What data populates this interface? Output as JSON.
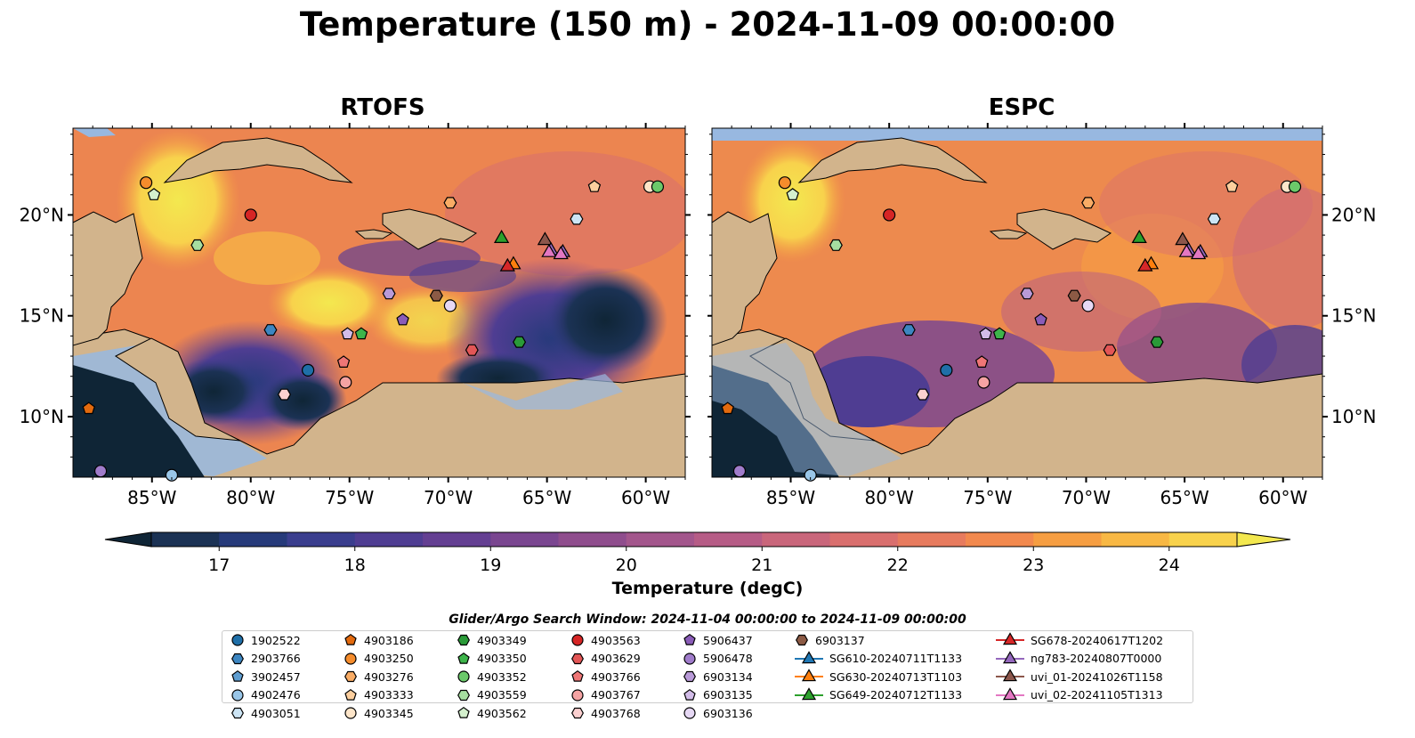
{
  "title": "Temperature (150 m) - 2024-11-09 00:00:00",
  "panels": [
    {
      "id": "rtofs",
      "title": "RTOFS"
    },
    {
      "id": "espc",
      "title": "ESPC"
    }
  ],
  "axes": {
    "x_ticks": [
      "85°W",
      "80°W",
      "75°W",
      "70°W",
      "65°W",
      "60°W"
    ],
    "y_ticks": [
      "20°N",
      "15°N",
      "10°N"
    ],
    "lon_range": [
      -89,
      -58
    ],
    "lat_range": [
      7,
      24.3
    ]
  },
  "colorbar": {
    "label": "Temperature (degC)",
    "min": 16.5,
    "max": 24.5,
    "ticks": [
      "17",
      "18",
      "19",
      "20",
      "21",
      "22",
      "23",
      "24"
    ],
    "colors": [
      "#0f2536",
      "#1b3254",
      "#263a7a",
      "#3a3e8e",
      "#4f3d92",
      "#643f92",
      "#7a4690",
      "#8f4d8d",
      "#a3568c",
      "#b65c86",
      "#c9667b",
      "#d96f6e",
      "#e77b5e",
      "#f2894e",
      "#f69e42",
      "#f8b844",
      "#f8d24c",
      "#f3e84f"
    ]
  },
  "search_window": "Glider/Argo Search Window: 2024-11-04 00:00:00 to 2024-11-09 00:00:00",
  "legend": [
    {
      "label": "1902522",
      "shape": "circle",
      "color": "#1f6fa8"
    },
    {
      "label": "2903766",
      "shape": "hexagon",
      "color": "#3d86c1"
    },
    {
      "label": "3902457",
      "shape": "pentagon",
      "color": "#5f9ed1"
    },
    {
      "label": "4902476",
      "shape": "circle",
      "color": "#99c6e8"
    },
    {
      "label": "4903051",
      "shape": "hexagon",
      "color": "#cde5f5"
    },
    {
      "label": "4903186",
      "shape": "pentagon",
      "color": "#e36a0e"
    },
    {
      "label": "4903250",
      "shape": "circle",
      "color": "#f58c2c"
    },
    {
      "label": "4903276",
      "shape": "hexagon",
      "color": "#f9ac65"
    },
    {
      "label": "4903333",
      "shape": "pentagon",
      "color": "#fdcf9e"
    },
    {
      "label": "4903345",
      "shape": "circle",
      "color": "#fde5c9"
    },
    {
      "label": "4903349",
      "shape": "hexagon",
      "color": "#2a9a38"
    },
    {
      "label": "4903350",
      "shape": "pentagon",
      "color": "#3db44a"
    },
    {
      "label": "4903352",
      "shape": "circle",
      "color": "#6bc96a"
    },
    {
      "label": "4903559",
      "shape": "hexagon",
      "color": "#a6dea0"
    },
    {
      "label": "4903562",
      "shape": "pentagon",
      "color": "#d4f0cd"
    },
    {
      "label": "4903563",
      "shape": "circle",
      "color": "#d62525"
    },
    {
      "label": "4903629",
      "shape": "hexagon",
      "color": "#e35656"
    },
    {
      "label": "4903766",
      "shape": "pentagon",
      "color": "#ef7676"
    },
    {
      "label": "4903767",
      "shape": "circle",
      "color": "#f5a3a3"
    },
    {
      "label": "4903768",
      "shape": "hexagon",
      "color": "#fbd0d0"
    },
    {
      "label": "5906437",
      "shape": "pentagon",
      "color": "#8a5cb8"
    },
    {
      "label": "5906478",
      "shape": "circle",
      "color": "#a07ccb"
    },
    {
      "label": "6903134",
      "shape": "hexagon",
      "color": "#b99ad8"
    },
    {
      "label": "6903135",
      "shape": "pentagon",
      "color": "#d2bce8"
    },
    {
      "label": "6903136",
      "shape": "circle",
      "color": "#e6d8f4"
    },
    {
      "label": "6903137",
      "shape": "hexagon",
      "color": "#8c5a45"
    },
    {
      "label": "SG610-20240711T1133",
      "shape": "triangle",
      "color": "#1f77b4"
    },
    {
      "label": "SG630-20240713T1103",
      "shape": "triangle",
      "color": "#ff7f0e"
    },
    {
      "label": "SG649-20240712T1133",
      "shape": "triangle",
      "color": "#2ca02c"
    },
    {
      "label": "SG678-20240617T1202",
      "shape": "triangle",
      "color": "#d62728"
    },
    {
      "label": "ng783-20240807T0000",
      "shape": "triangle",
      "color": "#9467bd"
    },
    {
      "label": "uvi_01-20241026T1158",
      "shape": "triangle",
      "color": "#8c564b"
    },
    {
      "label": "uvi_02-20241105T1313",
      "shape": "triangle",
      "color": "#e377c2"
    }
  ],
  "markers": [
    {
      "id": "4903250",
      "lon": -85.3,
      "lat": 21.6
    },
    {
      "id": "4903562",
      "lon": -84.9,
      "lat": 21.0
    },
    {
      "id": "4903563",
      "lon": -80.0,
      "lat": 20.0
    },
    {
      "id": "4903559",
      "lon": -82.7,
      "lat": 18.5
    },
    {
      "id": "4903276",
      "lon": -69.9,
      "lat": 20.6
    },
    {
      "id": "4903333",
      "lon": -62.6,
      "lat": 21.4
    },
    {
      "id": "4903345",
      "lon": -59.8,
      "lat": 21.4
    },
    {
      "id": "4903352",
      "lon": -59.4,
      "lat": 21.4
    },
    {
      "id": "4903051",
      "lon": -63.5,
      "lat": 19.8
    },
    {
      "id": "6903134",
      "lon": -73.0,
      "lat": 16.1
    },
    {
      "id": "6903137",
      "lon": -70.6,
      "lat": 16.0
    },
    {
      "id": "6903136",
      "lon": -69.9,
      "lat": 15.5
    },
    {
      "id": "5906437",
      "lon": -72.3,
      "lat": 14.8
    },
    {
      "id": "2903766",
      "lon": -79.0,
      "lat": 14.3
    },
    {
      "id": "6903135",
      "lon": -75.1,
      "lat": 14.1
    },
    {
      "id": "4903350",
      "lon": -74.4,
      "lat": 14.1
    },
    {
      "id": "4903349",
      "lon": -66.4,
      "lat": 13.7
    },
    {
      "id": "4903629",
      "lon": -68.8,
      "lat": 13.3
    },
    {
      "id": "4903766",
      "lon": -75.3,
      "lat": 12.7
    },
    {
      "id": "1902522",
      "lon": -77.1,
      "lat": 12.3
    },
    {
      "id": "4903767",
      "lon": -75.2,
      "lat": 11.7
    },
    {
      "id": "4903768",
      "lon": -78.3,
      "lat": 11.1
    },
    {
      "id": "4903186",
      "lon": -88.2,
      "lat": 10.4
    },
    {
      "id": "5906478",
      "lon": -87.6,
      "lat": 7.3
    },
    {
      "id": "4902476",
      "lon": -84.0,
      "lat": 7.1
    },
    {
      "id": "SG649-20240712T1133",
      "lon": -67.3,
      "lat": 18.9
    },
    {
      "id": "uvi_01-20241026T1158",
      "lon": -65.1,
      "lat": 18.8
    },
    {
      "id": "ng783-20240807T0000",
      "lon": -64.8,
      "lat": 18.3
    },
    {
      "id": "uvi_02-20241105T1313",
      "lon": -64.9,
      "lat": 18.2
    },
    {
      "id": "ng783-20240807T0000",
      "lon": -64.2,
      "lat": 18.2
    },
    {
      "id": "uvi_02-20241105T1313",
      "lon": -64.3,
      "lat": 18.1
    },
    {
      "id": "SG630-20240713T1103",
      "lon": -66.7,
      "lat": 17.6
    },
    {
      "id": "SG678-20240617T1202",
      "lon": -67.0,
      "lat": 17.5
    }
  ]
}
